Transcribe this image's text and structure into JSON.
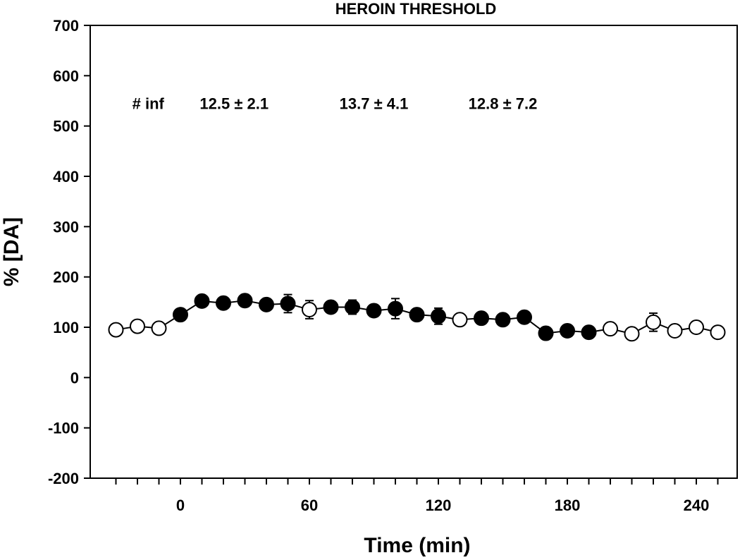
{
  "chart_data": {
    "type": "scatter",
    "title": "HEROIN THRESHOLD",
    "xlabel": "Time (min)",
    "ylabel": "% [DA]",
    "xlim": [
      -40,
      255
    ],
    "ylim": [
      -200,
      700
    ],
    "xticks": [
      0,
      60,
      120,
      180,
      240
    ],
    "xticks_minor": [
      -30,
      -20,
      -10,
      0,
      10,
      20,
      30,
      40,
      50,
      60,
      70,
      80,
      90,
      100,
      110,
      120,
      130,
      140,
      150,
      160,
      170,
      180,
      190,
      200,
      210,
      220,
      230,
      240,
      250
    ],
    "yticks": [
      -200,
      -100,
      0,
      100,
      200,
      300,
      400,
      500,
      600,
      700
    ],
    "grid": false,
    "annotations": [
      {
        "text": "# inf",
        "x": -15,
        "y": 545
      },
      {
        "text": "12.5 ± 2.1",
        "x": 25,
        "y": 545
      },
      {
        "text": "13.7 ± 4.1",
        "x": 90,
        "y": 545
      },
      {
        "text": "12.8 ± 7.2",
        "x": 150,
        "y": 545
      }
    ],
    "segments": [
      {
        "filled": false,
        "points": [
          {
            "x": -30,
            "y": 95,
            "err": 3
          },
          {
            "x": -20,
            "y": 102,
            "err": 3
          },
          {
            "x": -10,
            "y": 98,
            "err": 3
          }
        ]
      },
      {
        "filled": true,
        "points": [
          {
            "x": 0,
            "y": 125,
            "err": 5
          },
          {
            "x": 10,
            "y": 152,
            "err": 4
          },
          {
            "x": 20,
            "y": 148,
            "err": 5
          },
          {
            "x": 30,
            "y": 153,
            "err": 12
          },
          {
            "x": 40,
            "y": 145,
            "err": 6
          },
          {
            "x": 50,
            "y": 147,
            "err": 18
          }
        ]
      },
      {
        "filled": false,
        "points": [
          {
            "x": 60,
            "y": 135,
            "err": 18
          }
        ]
      },
      {
        "filled": true,
        "points": [
          {
            "x": 70,
            "y": 140,
            "err": 8
          },
          {
            "x": 80,
            "y": 140,
            "err": 14
          },
          {
            "x": 90,
            "y": 133,
            "err": 12
          },
          {
            "x": 100,
            "y": 137,
            "err": 20
          },
          {
            "x": 110,
            "y": 125,
            "err": 8
          },
          {
            "x": 120,
            "y": 122,
            "err": 16
          }
        ]
      },
      {
        "filled": false,
        "points": [
          {
            "x": 130,
            "y": 115,
            "err": 8
          }
        ]
      },
      {
        "filled": true,
        "points": [
          {
            "x": 140,
            "y": 118,
            "err": 5
          },
          {
            "x": 150,
            "y": 115,
            "err": 5
          },
          {
            "x": 160,
            "y": 120,
            "err": 8
          },
          {
            "x": 170,
            "y": 88,
            "err": 5
          },
          {
            "x": 180,
            "y": 93,
            "err": 5
          },
          {
            "x": 190,
            "y": 90,
            "err": 5
          }
        ]
      },
      {
        "filled": false,
        "points": [
          {
            "x": 200,
            "y": 97,
            "err": 5
          },
          {
            "x": 210,
            "y": 87,
            "err": 5
          },
          {
            "x": 220,
            "y": 110,
            "err": 18
          },
          {
            "x": 230,
            "y": 93,
            "err": 5
          },
          {
            "x": 240,
            "y": 100,
            "err": 5
          },
          {
            "x": 250,
            "y": 90,
            "err": 5
          }
        ]
      }
    ]
  }
}
